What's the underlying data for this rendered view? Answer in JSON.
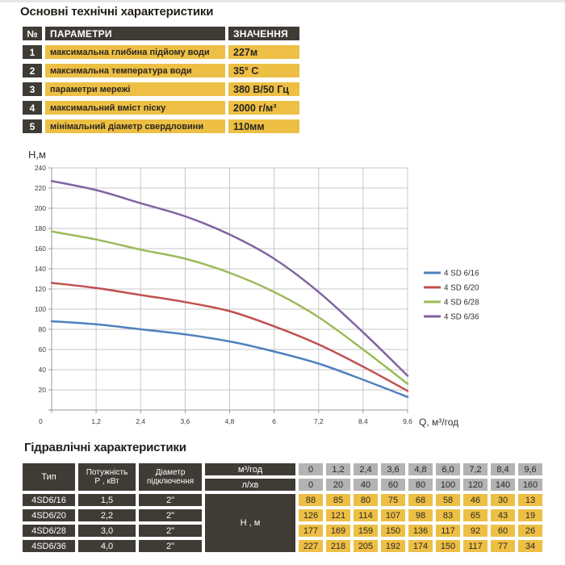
{
  "theme": {
    "gold": "#edbf45",
    "dark": "#3f3b35",
    "gray": "#b3b3b3",
    "page_bg": "#ffffff"
  },
  "tech_section": {
    "title": "Основні технічні характеристики",
    "table": {
      "headers": {
        "num": "№",
        "param": "ПАРАМЕТРИ",
        "value": "ЗНАЧЕННЯ"
      },
      "rows": [
        {
          "num": "1",
          "param": "максимальна глибина підйому води",
          "value": "227м"
        },
        {
          "num": "2",
          "param": "максимальна температура води",
          "value": "35° С"
        },
        {
          "num": "3",
          "param": "параметри мережі",
          "value": "380 В/50 Гц"
        },
        {
          "num": "4",
          "param": "максимальний вміст піску",
          "value": "2000 г/м³"
        },
        {
          "num": "5",
          "param": "мінімальний діаметр свердловини",
          "value": "110мм"
        }
      ]
    }
  },
  "chart_data": {
    "type": "line",
    "title": "",
    "ylabel": "Н,м",
    "xlabel": "Q,  м³/год",
    "x": [
      0,
      1.2,
      2.4,
      3.6,
      4.8,
      6,
      7.2,
      8.4,
      9.6
    ],
    "x_tick_labels": [
      "0",
      "1,2",
      "2,4",
      "3,6",
      "4,8",
      "6",
      "7,2",
      "8,4",
      "9,6"
    ],
    "xlim": [
      0,
      9.6
    ],
    "ylim": [
      0,
      240
    ],
    "y_tick_step": 20,
    "grid": true,
    "legend_position": "right",
    "series": [
      {
        "name": "4 SD 6/16",
        "color": "#4f81bd",
        "values": [
          88,
          85,
          80,
          75,
          68,
          58,
          46,
          30,
          13
        ]
      },
      {
        "name": "4 SD 6/20",
        "color": "#c0504d",
        "values": [
          126,
          121,
          114,
          107,
          98,
          83,
          65,
          43,
          19
        ]
      },
      {
        "name": "4 SD 6/28",
        "color": "#9bbb59",
        "values": [
          177,
          169,
          159,
          150,
          136,
          117,
          92,
          60,
          26
        ]
      },
      {
        "name": "4 SD 6/36",
        "color": "#8064a2",
        "values": [
          227,
          218,
          205,
          192,
          174,
          150,
          117,
          77,
          34
        ]
      }
    ]
  },
  "hydraulic_section": {
    "title": "Гідравлічні характеристики",
    "table": {
      "columns": {
        "type": "Тип",
        "power": [
          "Потужність",
          "Р , кВт"
        ],
        "connection_diameter": [
          "Діаметр",
          "підключення"
        ]
      },
      "unit_row1_label": "м³/год",
      "unit_row2_label": "л/хв",
      "head_label": "Н , м",
      "unit_row1_values": [
        "0",
        "1,2",
        "2,4",
        "3,6",
        "4,8",
        "6,0",
        "7,2",
        "8,4",
        "9,6"
      ],
      "unit_row2_values": [
        "0",
        "20",
        "40",
        "60",
        "80",
        "100",
        "120",
        "140",
        "160"
      ],
      "rows": [
        {
          "type": "4SD6/16",
          "power": "1,5",
          "diameter": "2\"",
          "values": [
            "88",
            "85",
            "80",
            "75",
            "68",
            "58",
            "46",
            "30",
            "13"
          ]
        },
        {
          "type": "4SD6/20",
          "power": "2,2",
          "diameter": "2\"",
          "values": [
            "126",
            "121",
            "114",
            "107",
            "98",
            "83",
            "65",
            "43",
            "19"
          ]
        },
        {
          "type": "4SD6/28",
          "power": "3,0",
          "diameter": "2\"",
          "values": [
            "177",
            "169",
            "159",
            "150",
            "136",
            "117",
            "92",
            "60",
            "26"
          ]
        },
        {
          "type": "4SD6/36",
          "power": "4,0",
          "diameter": "2\"",
          "values": [
            "227",
            "218",
            "205",
            "192",
            "174",
            "150",
            "117",
            "77",
            "34"
          ]
        }
      ]
    }
  }
}
